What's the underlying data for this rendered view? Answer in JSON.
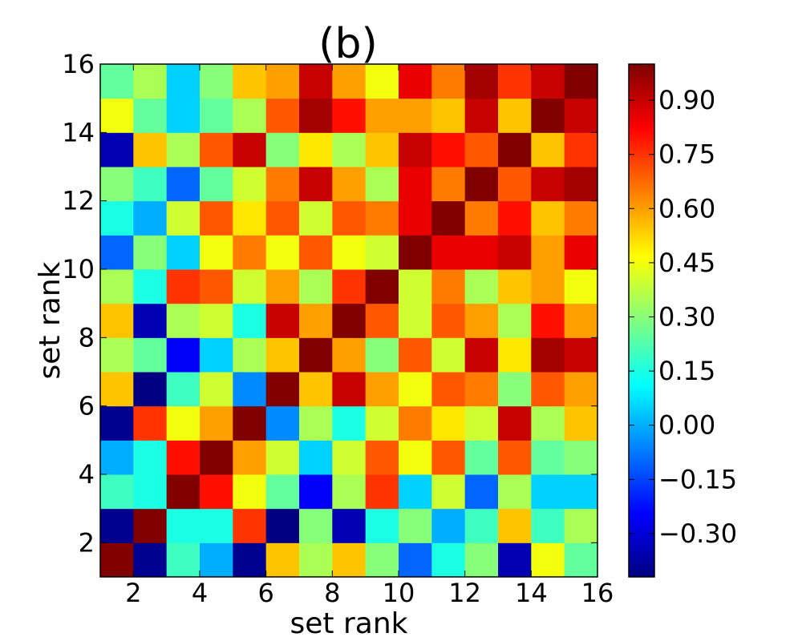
{
  "chart_data": {
    "type": "heatmap",
    "title": "(b)",
    "xlabel": "set rank",
    "ylabel": "set rank",
    "x_ticks": [
      "2",
      "4",
      "6",
      "8",
      "10",
      "12",
      "14",
      "16"
    ],
    "y_ticks": [
      "2",
      "4",
      "6",
      "8",
      "10",
      "12",
      "14",
      "16"
    ],
    "xlim": [
      1,
      16
    ],
    "ylim": [
      1,
      16
    ],
    "colormap": "jet",
    "color_range": [
      -0.42,
      1.0
    ],
    "colorbar_ticks": [
      "−0.30",
      "−0.15",
      "0.00",
      "0.15",
      "0.30",
      "0.45",
      "0.60",
      "0.75",
      "0.90"
    ],
    "colorbar_tick_values": [
      -0.3,
      -0.15,
      0.0,
      0.15,
      0.3,
      0.45,
      0.6,
      0.75,
      0.9
    ],
    "values": [
      [
        1.0,
        -0.4,
        0.2,
        0.0,
        -0.4,
        0.55,
        0.35,
        0.55,
        0.3,
        -0.1,
        0.15,
        0.3,
        -0.35,
        0.45,
        0.25
      ],
      [
        -0.4,
        1.0,
        0.15,
        0.15,
        0.75,
        -0.45,
        0.3,
        -0.35,
        0.15,
        0.3,
        0.0,
        0.2,
        0.55,
        0.2,
        0.35
      ],
      [
        0.2,
        0.15,
        1.0,
        0.8,
        0.45,
        0.25,
        -0.25,
        0.35,
        0.75,
        0.05,
        0.4,
        -0.1,
        0.35,
        0.05,
        0.05
      ],
      [
        0.0,
        0.15,
        0.8,
        1.0,
        0.6,
        0.4,
        0.05,
        0.4,
        0.7,
        0.45,
        0.7,
        0.25,
        0.7,
        0.25,
        0.3
      ],
      [
        -0.4,
        0.75,
        0.45,
        0.6,
        1.0,
        -0.05,
        0.35,
        0.15,
        0.4,
        0.65,
        0.5,
        0.4,
        0.9,
        0.35,
        0.55
      ],
      [
        0.55,
        -0.45,
        0.2,
        0.4,
        -0.05,
        1.0,
        0.55,
        0.9,
        0.6,
        0.45,
        0.7,
        0.65,
        0.3,
        0.7,
        0.6
      ],
      [
        0.35,
        0.25,
        -0.25,
        0.05,
        0.35,
        0.55,
        1.0,
        0.6,
        0.3,
        0.7,
        0.4,
        0.9,
        0.5,
        0.95,
        0.9
      ],
      [
        0.55,
        -0.35,
        0.35,
        0.4,
        0.15,
        0.9,
        0.6,
        1.0,
        0.7,
        0.4,
        0.7,
        0.6,
        0.35,
        0.8,
        0.6
      ],
      [
        0.35,
        0.15,
        0.75,
        0.7,
        0.4,
        0.6,
        0.35,
        0.75,
        1.0,
        0.4,
        0.65,
        0.35,
        0.55,
        0.6,
        0.45
      ],
      [
        -0.1,
        0.3,
        0.05,
        0.45,
        0.65,
        0.45,
        0.7,
        0.45,
        0.4,
        1.0,
        0.85,
        0.85,
        0.9,
        0.6,
        0.85
      ],
      [
        0.15,
        0.0,
        0.4,
        0.7,
        0.5,
        0.7,
        0.4,
        0.7,
        0.65,
        0.85,
        1.0,
        0.65,
        0.8,
        0.55,
        0.65
      ],
      [
        0.3,
        0.2,
        -0.1,
        0.25,
        0.4,
        0.65,
        0.9,
        0.6,
        0.35,
        0.85,
        0.65,
        1.0,
        0.7,
        0.9,
        0.95
      ],
      [
        -0.35,
        0.55,
        0.35,
        0.7,
        0.9,
        0.3,
        0.5,
        0.35,
        0.55,
        0.9,
        0.8,
        0.7,
        1.0,
        0.55,
        0.75
      ],
      [
        0.45,
        0.25,
        0.05,
        0.25,
        0.35,
        0.7,
        0.95,
        0.8,
        0.6,
        0.6,
        0.55,
        0.9,
        0.55,
        1.0,
        0.9
      ],
      [
        0.25,
        0.35,
        0.05,
        0.3,
        0.55,
        0.6,
        0.9,
        0.6,
        0.45,
        0.85,
        0.65,
        0.95,
        0.75,
        0.9,
        1.0
      ]
    ]
  }
}
